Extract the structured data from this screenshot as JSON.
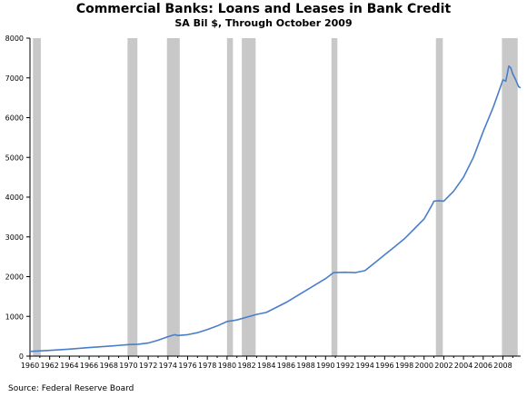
{
  "chart_data": {
    "type": "line",
    "title": "Commercial Banks: Loans and Leases in Bank Credit",
    "subtitle": "SA Bil $, Through October 2009",
    "xlabel": "",
    "ylabel": "",
    "xlim": [
      1960,
      2009.8
    ],
    "ylim": [
      0,
      8000
    ],
    "y_ticks": [
      0,
      1000,
      2000,
      3000,
      4000,
      5000,
      6000,
      7000,
      8000
    ],
    "x_ticks": [
      "1960",
      "1962",
      "1964",
      "1966",
      "1968",
      "1970",
      "1972",
      "1974",
      "1976",
      "1978",
      "1980",
      "1982",
      "1984",
      "1986",
      "1988",
      "1990",
      "1992",
      "1994",
      "1996",
      "1998",
      "2000",
      "2002",
      "2004",
      "2006",
      "2008"
    ],
    "grid": false,
    "legend": "none",
    "colors": {
      "line": "#4a7ecb",
      "recession": "#c8c8c8",
      "axis": "#000000"
    },
    "recessions": [
      [
        1960.3,
        1961.1
      ],
      [
        1969.9,
        1970.9
      ],
      [
        1973.9,
        1975.2
      ],
      [
        1980.0,
        1980.6
      ],
      [
        1981.5,
        1982.9
      ],
      [
        1990.6,
        1991.2
      ],
      [
        2001.2,
        2001.9
      ],
      [
        2007.9,
        2009.5
      ]
    ],
    "series": [
      {
        "x": [
          1960,
          1962,
          1964,
          1966,
          1968,
          1970,
          1971,
          1972,
          1973,
          1974,
          1974.7,
          1975,
          1976,
          1977,
          1978,
          1979,
          1980,
          1981,
          1982,
          1983,
          1984,
          1986,
          1988,
          1990,
          1990.8,
          1992,
          1993,
          1994,
          1995,
          1996,
          1997,
          1998,
          1999,
          2000,
          2000.8,
          2001,
          2001.5,
          2002,
          2003,
          2004,
          2005,
          2006,
          2007,
          2007.5,
          2008,
          2008.3,
          2008.6,
          2008.8,
          2009,
          2009.3,
          2009.6,
          2009.8
        ],
        "values": [
          120,
          145,
          175,
          215,
          250,
          290,
          300,
          330,
          400,
          490,
          540,
          520,
          540,
          590,
          670,
          760,
          870,
          910,
          980,
          1050,
          1100,
          1350,
          1650,
          1950,
          2100,
          2110,
          2100,
          2150,
          2350,
          2550,
          2750,
          2950,
          3200,
          3450,
          3800,
          3900,
          3910,
          3900,
          4150,
          4500,
          5000,
          5650,
          6250,
          6600,
          6950,
          6920,
          7300,
          7250,
          7100,
          6950,
          6780,
          6750
        ]
      }
    ]
  },
  "source": "Source: Federal Reserve Board"
}
